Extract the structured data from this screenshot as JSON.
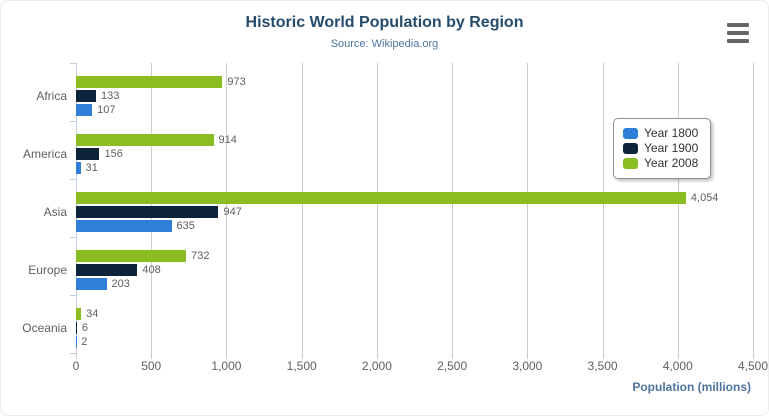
{
  "header": {
    "title": "Historic World Population by Region",
    "subtitle": "Source: Wikipedia.org"
  },
  "export_menu": {
    "icon": "hamburger-menu-icon"
  },
  "legend": {
    "position": "right-middle-box",
    "items": [
      {
        "label": "Year 1800",
        "color": "#2f7ed8"
      },
      {
        "label": "Year 1900",
        "color": "#0d233a"
      },
      {
        "label": "Year 2008",
        "color": "#8bbc21"
      }
    ]
  },
  "chart_data": {
    "type": "bar",
    "orientation": "horizontal",
    "title": "Historic World Population by Region",
    "subtitle": "Source: Wikipedia.org",
    "categories": [
      "Africa",
      "America",
      "Asia",
      "Europe",
      "Oceania"
    ],
    "series": [
      {
        "name": "Year 1800",
        "color": "#2f7ed8",
        "values": [
          107,
          31,
          635,
          203,
          2
        ]
      },
      {
        "name": "Year 1900",
        "color": "#0d233a",
        "values": [
          133,
          156,
          947,
          408,
          6
        ]
      },
      {
        "name": "Year 2008",
        "color": "#8bbc21",
        "values": [
          973,
          914,
          4054,
          732,
          34
        ]
      }
    ],
    "bar_order_top_to_bottom": [
      "Year 2008",
      "Year 1900",
      "Year 1800"
    ],
    "data_labels": {
      "Africa": {
        "Year 2008": "973",
        "Year 1900": "133",
        "Year 1800": "107"
      },
      "America": {
        "Year 2008": "914",
        "Year 1900": "156",
        "Year 1800": "31"
      },
      "Asia": {
        "Year 2008": "4,054",
        "Year 1900": "947",
        "Year 1800": "635"
      },
      "Europe": {
        "Year 2008": "732",
        "Year 1900": "408",
        "Year 1800": "203"
      },
      "Oceania": {
        "Year 2008": "34",
        "Year 1900": "6",
        "Year 1800": "2"
      }
    },
    "xlabel": "Population (millions)",
    "ylabel": "",
    "xlim": [
      0,
      4500
    ],
    "xticks": [
      0,
      500,
      1000,
      1500,
      2000,
      2500,
      3000,
      3500,
      4000,
      4500
    ],
    "xtick_labels": [
      "0",
      "500",
      "1,000",
      "1,500",
      "2,000",
      "2,500",
      "3,000",
      "3,500",
      "4,000",
      "4,500"
    ],
    "grid": true,
    "legend_position": "floating-box-right"
  },
  "colors": {
    "title": "#274b6d",
    "subtitle": "#4d759e",
    "axis_labels": "#606060",
    "data_labels": "#606060",
    "gridline": "#cccccc",
    "axis_line": "#c0d0e0",
    "axis_title": "#4d759e",
    "export_icon": "#666666"
  }
}
